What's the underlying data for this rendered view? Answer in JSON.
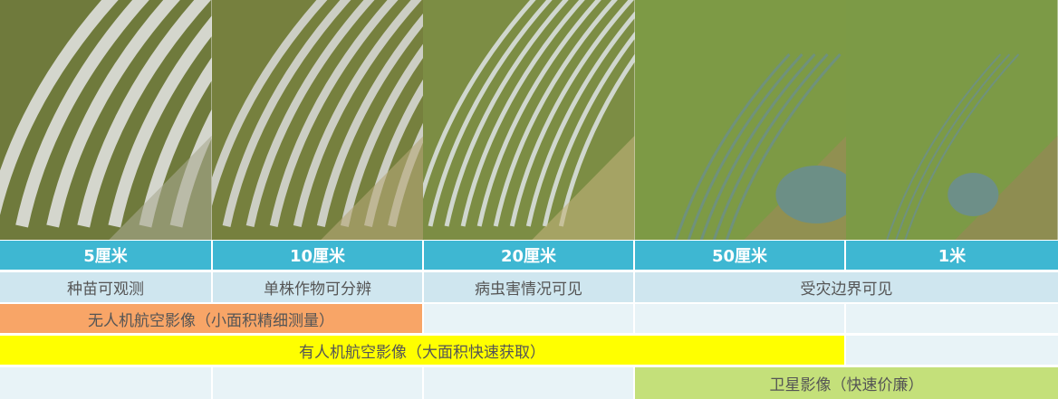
{
  "images": [
    {
      "label": "5cm aerial",
      "colors": [
        "#6f7a3c",
        "#a9a890",
        "#e6e6e6"
      ]
    },
    {
      "label": "10cm aerial",
      "colors": [
        "#76803e",
        "#b5a878",
        "#dcdcdc"
      ]
    },
    {
      "label": "20cm aerial",
      "colors": [
        "#7c8d44",
        "#c2b27a",
        "#dfe4e6"
      ]
    },
    {
      "label": "50cm aerial",
      "colors": [
        "#7d9a45",
        "#9e8a5a",
        "#6c8f86"
      ]
    },
    {
      "label": "1m satellite",
      "colors": [
        "#7c9a46",
        "#9b8558",
        "#6d8f88"
      ]
    }
  ],
  "resolutions": [
    "5厘米",
    "10厘米",
    "20厘米",
    "50厘米",
    "1米"
  ],
  "capabilities": [
    "种苗可观测",
    "单株作物可分辨",
    "病虫害情况可见",
    "受灾边界可见"
  ],
  "sources": {
    "uav": "无人机航空影像（小面积精细测量）",
    "manned": "有人机航空影像（大面积快速获取）",
    "satellite": "卫星影像（快速价廉）"
  },
  "colors": {
    "header": "#3eb7d2",
    "capability_row": "#cfe6ef",
    "empty_cell": "#e8f3f7",
    "uav": "#f8a567",
    "manned": "#ffff00",
    "satellite": "#c4e07a"
  }
}
